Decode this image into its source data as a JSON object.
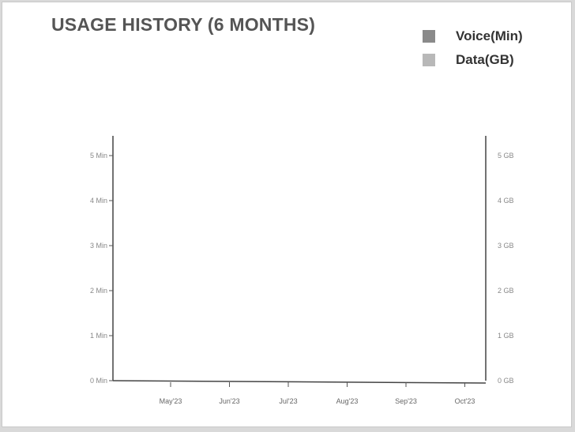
{
  "chart_data": {
    "type": "bar",
    "title": "USAGE HISTORY (6 MONTHS)",
    "categories": [
      "May'23",
      "Jun'23",
      "Jul'23",
      "Aug'23",
      "Sep'23",
      "Oct'23"
    ],
    "series": [
      {
        "name": "Voice(Min)",
        "axis": "left",
        "color": "#8a8a8a",
        "values": [
          0,
          0,
          0,
          0,
          0,
          0
        ]
      },
      {
        "name": "Data(GB)",
        "axis": "right",
        "color": "#b8b8b8",
        "values": [
          0,
          0,
          0,
          0,
          0,
          0
        ]
      }
    ],
    "y_left": {
      "ticks": [
        "0 Min",
        "1 Min",
        "2 Min",
        "3 Min",
        "4 Min",
        "5 Min"
      ],
      "ylim": [
        0,
        5
      ]
    },
    "y_right": {
      "ticks": [
        "0 GB",
        "1 GB",
        "2 GB",
        "3 GB",
        "4 GB",
        "5 GB"
      ],
      "ylim": [
        0,
        5
      ]
    },
    "grid": false,
    "legend_position": "top-right"
  }
}
